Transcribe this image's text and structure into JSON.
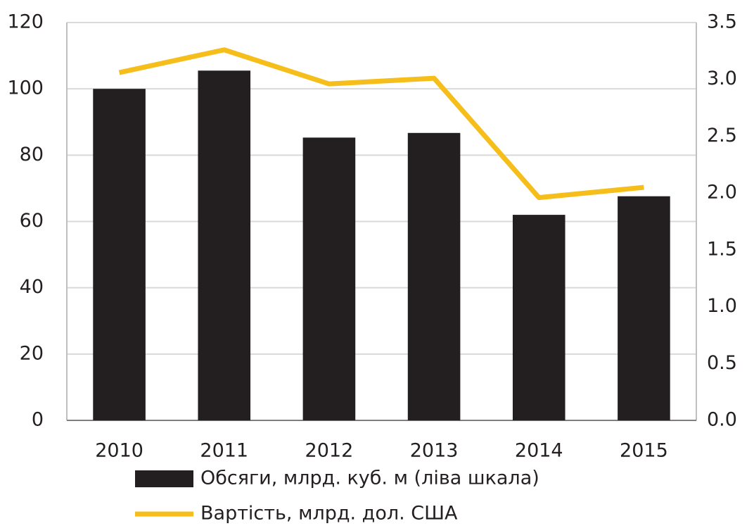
{
  "chart_data": {
    "type": "bar",
    "categories": [
      "2010",
      "2011",
      "2012",
      "2013",
      "2014",
      "2015"
    ],
    "series": [
      {
        "name": "Обсяги, млрд. куб. м (ліва шкала)",
        "type": "bar",
        "color": "#231f20",
        "values": [
          100,
          105.5,
          85.3,
          86.7,
          62,
          67.6
        ]
      },
      {
        "name": "Вартість, млрд. дол. США",
        "type": "line",
        "axis": "y2",
        "color": "#f6be1a",
        "values": [
          3.06,
          3.26,
          2.96,
          3.01,
          1.96,
          2.05
        ]
      }
    ],
    "ylim": [
      0,
      120
    ],
    "yticks": [
      0,
      20,
      40,
      60,
      80,
      100,
      120
    ],
    "y2lim": [
      0,
      3.5
    ],
    "y2ticks": [
      {
        "value": 0,
        "label": "0.0"
      },
      0.5,
      {
        "value": 1,
        "label": "1.0"
      },
      1.5,
      {
        "value": 2,
        "label": "2.0"
      },
      2.5,
      {
        "value": 3,
        "label": "3.0"
      },
      3.5
    ],
    "grid": true,
    "legend": "bottom"
  }
}
